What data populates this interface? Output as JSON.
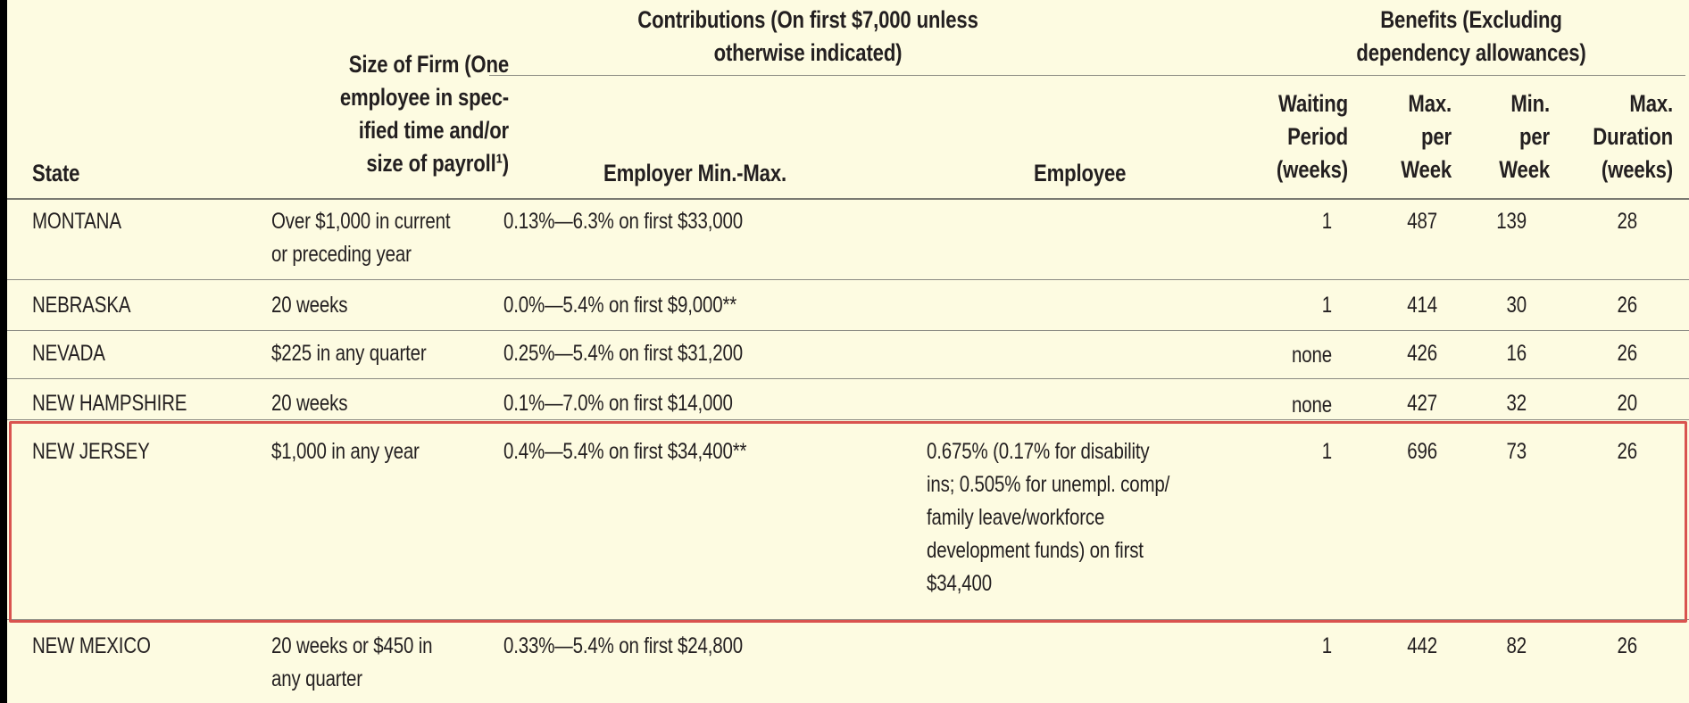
{
  "header": {
    "state": "State",
    "size_of_firm": "Size of Firm (One\nemployee in spec-\nified time and/or\nsize of payroll¹)",
    "contributions_group": "Contributions (On first $7,000 unless\notherwise indicated)",
    "benefits_group": "Benefits (Excluding\ndependency allowances)",
    "employer": "Employer Min.-Max.",
    "employee": "Employee",
    "waiting_period": "Waiting\nPeriod\n(weeks)",
    "max_per_week": "Max.\nper\nWeek",
    "min_per_week": "Min.\nper\nWeek",
    "max_duration": "Max.\nDuration\n(weeks)"
  },
  "rows": [
    {
      "state": "MONTANA",
      "size": "Over $1,000 in current\nor preceding year",
      "employer": "0.13%—6.3% on first $33,000",
      "employee": "",
      "waiting": "1",
      "max": "487",
      "min": "139",
      "duration": "28"
    },
    {
      "state": "NEBRASKA",
      "size": "20 weeks",
      "employer": "0.0%—5.4% on first $9,000**",
      "employee": "",
      "waiting": "1",
      "max": "414",
      "min": "30",
      "duration": "26"
    },
    {
      "state": "NEVADA",
      "size": "$225 in any quarter",
      "employer": "0.25%—5.4% on first $31,200",
      "employee": "",
      "waiting": "none",
      "max": "426",
      "min": "16",
      "duration": "26"
    },
    {
      "state": "NEW HAMPSHIRE",
      "size": "20 weeks",
      "employer": "0.1%—7.0% on first $14,000",
      "employee": "",
      "waiting": "none",
      "max": "427",
      "min": "32",
      "duration": "20"
    },
    {
      "state": "NEW JERSEY",
      "size": "$1,000 in any year",
      "employer": "0.4%—5.4% on first $34,400**",
      "employee": "0.675% (0.17% for disability\nins; 0.505% for unempl. comp/\nfamily leave/workforce\ndevelopment funds) on first\n$34,400",
      "waiting": "1",
      "max": "696",
      "min": "73",
      "duration": "26"
    },
    {
      "state": "NEW MEXICO",
      "size": "20 weeks or $450 in\nany quarter",
      "employer": "0.33%—5.4% on first $24,800",
      "employee": "",
      "waiting": "1",
      "max": "442",
      "min": "82",
      "duration": "26"
    }
  ],
  "colors": {
    "background": "#fdfbe1",
    "highlight_border": "#d9534f",
    "text": "#231f20"
  }
}
